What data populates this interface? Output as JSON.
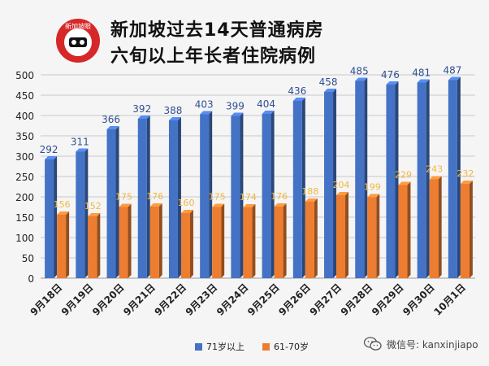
{
  "header": {
    "logo_text": "新加坡眼",
    "title_line1": "新加坡过去14天普通病房",
    "title_line2": "六旬以上年长者住院病例"
  },
  "watermark": {
    "text": "微信号: kanxinjiapo",
    "icon": "wechat-icon"
  },
  "colors": {
    "series1": "#4472c4",
    "series2": "#ed7d31",
    "label1": "#2f4f8f",
    "label2": "#f0b840"
  },
  "chart_data": {
    "type": "bar",
    "title": "新加坡过去14天普通病房六旬以上年长者住院病例",
    "categories": [
      "9月18日",
      "9月19日",
      "9月20日",
      "9月21日",
      "9月22日",
      "9月23日",
      "9月24日",
      "9月25日",
      "9月26日",
      "9月27日",
      "9月28日",
      "9月29日",
      "9月30日",
      "10月1日"
    ],
    "series": [
      {
        "name": "71岁以上",
        "values": [
          292,
          311,
          366,
          392,
          388,
          403,
          399,
          404,
          436,
          458,
          485,
          476,
          481,
          487
        ]
      },
      {
        "name": "61-70岁",
        "values": [
          156,
          152,
          175,
          176,
          160,
          175,
          174,
          176,
          188,
          204,
          199,
          229,
          243,
          232
        ]
      }
    ],
    "ylim": [
      0,
      500
    ],
    "yticks": [
      "0",
      "50",
      "100",
      "150",
      "200",
      "250",
      "300",
      "350",
      "400",
      "450",
      "500"
    ],
    "legend_position": "bottom"
  }
}
